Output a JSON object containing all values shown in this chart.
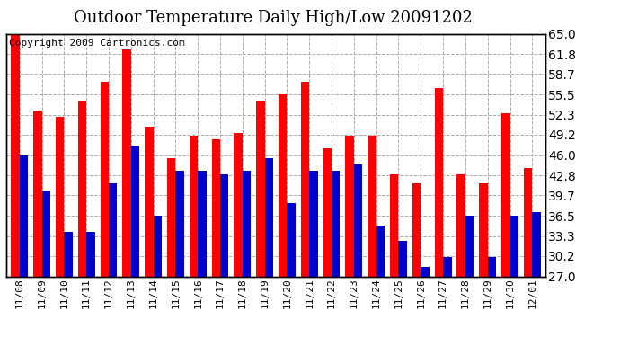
{
  "title": "Outdoor Temperature Daily High/Low 20091202",
  "copyright": "Copyright 2009 Cartronics.com",
  "categories": [
    "11/08",
    "11/09",
    "11/10",
    "11/11",
    "11/12",
    "11/13",
    "11/14",
    "11/15",
    "11/16",
    "11/17",
    "11/18",
    "11/19",
    "11/20",
    "11/21",
    "11/22",
    "11/23",
    "11/24",
    "11/25",
    "11/26",
    "11/27",
    "11/28",
    "11/29",
    "11/30",
    "12/01"
  ],
  "highs": [
    65.0,
    53.0,
    52.0,
    54.5,
    57.5,
    62.5,
    50.5,
    45.5,
    49.0,
    48.5,
    49.5,
    54.5,
    55.5,
    57.5,
    47.0,
    49.0,
    49.0,
    43.0,
    41.5,
    56.5,
    43.0,
    41.5,
    52.5,
    44.0
  ],
  "lows": [
    46.0,
    40.5,
    34.0,
    34.0,
    41.5,
    47.5,
    36.5,
    43.5,
    43.5,
    43.0,
    43.5,
    45.5,
    38.5,
    43.5,
    43.5,
    44.5,
    35.0,
    32.5,
    28.5,
    30.0,
    36.5,
    30.0,
    36.5,
    37.0
  ],
  "high_color": "#ff0000",
  "low_color": "#0000cc",
  "background_color": "#ffffff",
  "grid_color": "#aaaaaa",
  "ytick_vals": [
    27.0,
    30.2,
    33.3,
    36.5,
    39.7,
    42.8,
    46.0,
    49.2,
    52.3,
    55.5,
    58.7,
    61.8,
    65.0
  ],
  "ytick_labels": [
    "27.0",
    "30.2",
    "33.3",
    "36.5",
    "39.7",
    "42.8",
    "46.0",
    "49.2",
    "52.3",
    "55.5",
    "58.7",
    "61.8",
    "65.0"
  ],
  "ymin": 27.0,
  "ymax": 65.0,
  "title_fontsize": 13,
  "copyright_fontsize": 8,
  "tick_fontsize": 8,
  "bar_width": 0.38
}
